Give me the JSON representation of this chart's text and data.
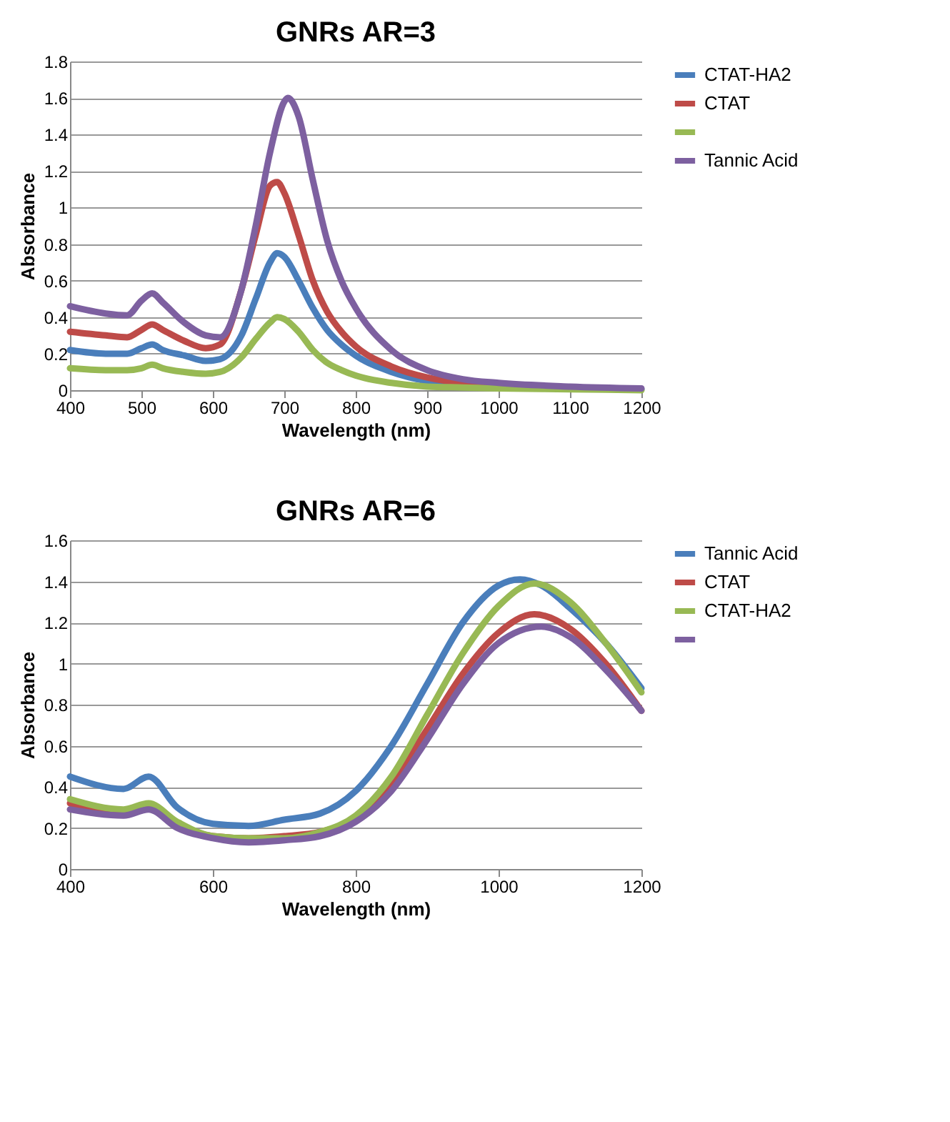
{
  "chart_data": [
    {
      "type": "line",
      "title": "GNRs AR=3",
      "xlabel": "Wavelength (nm)",
      "ylabel": "Absorbance",
      "xlim": [
        400,
        1200
      ],
      "xticks": [
        400,
        500,
        600,
        700,
        800,
        900,
        1000,
        1100,
        1200
      ],
      "ylim": [
        0,
        1.8
      ],
      "yticks": [
        0,
        0.2,
        0.4,
        0.6,
        0.8,
        1,
        1.2,
        1.4,
        1.6,
        1.8
      ],
      "grid": "y",
      "legend": "right",
      "marker": "none",
      "line_style": "solid",
      "x": [
        400,
        450,
        480,
        500,
        515,
        530,
        560,
        590,
        610,
        640,
        660,
        680,
        690,
        700,
        720,
        740,
        760,
        780,
        800,
        850,
        900,
        950,
        1000,
        1100,
        1200
      ],
      "series": [
        {
          "name": "CTAT-HA2",
          "color": "#4a7ebb",
          "values": [
            0.22,
            0.2,
            0.2,
            0.23,
            0.25,
            0.22,
            0.19,
            0.16,
            0.17,
            0.3,
            0.5,
            0.7,
            0.75,
            0.73,
            0.6,
            0.45,
            0.33,
            0.25,
            0.19,
            0.1,
            0.05,
            0.03,
            0.02,
            0.01,
            0.005
          ]
        },
        {
          "name": "CTAT",
          "color": "#be4b48",
          "values": [
            0.32,
            0.3,
            0.29,
            0.33,
            0.36,
            0.33,
            0.27,
            0.23,
            0.25,
            0.55,
            0.85,
            1.12,
            1.14,
            1.08,
            0.85,
            0.6,
            0.43,
            0.32,
            0.24,
            0.13,
            0.07,
            0.04,
            0.03,
            null,
            null
          ]
        },
        {
          "color": "#98b954",
          "values": [
            0.12,
            0.11,
            0.11,
            0.12,
            0.14,
            0.12,
            0.1,
            0.09,
            0.1,
            0.18,
            0.28,
            0.37,
            0.4,
            0.39,
            0.32,
            0.22,
            0.15,
            0.11,
            0.08,
            0.04,
            0.02,
            0.015,
            0.01,
            0.005,
            0
          ]
        },
        {
          "name": "Tannic Acid",
          "color": "#7d60a0",
          "x": [
            400,
            450,
            480,
            500,
            515,
            530,
            560,
            590,
            610,
            640,
            660,
            680,
            700,
            705,
            720,
            740,
            760,
            780,
            800,
            850,
            900,
            950,
            1000,
            1100,
            1200
          ],
          "values": [
            0.46,
            0.42,
            0.41,
            0.49,
            0.53,
            0.48,
            0.37,
            0.3,
            0.29,
            0.55,
            0.9,
            1.3,
            1.58,
            1.6,
            1.5,
            1.15,
            0.82,
            0.6,
            0.45,
            0.22,
            0.11,
            0.06,
            0.04,
            0.02,
            0.01
          ]
        }
      ]
    },
    {
      "type": "line",
      "title": "GNRs AR=6",
      "xlabel": "Wavelength (nm)",
      "ylabel": "Absorbance",
      "xlim": [
        400,
        1200
      ],
      "xticks": [
        400,
        600,
        800,
        1000,
        1200
      ],
      "ylim": [
        0,
        1.6
      ],
      "yticks": [
        0,
        0.2,
        0.4,
        0.6,
        0.8,
        1,
        1.2,
        1.4,
        1.6
      ],
      "grid": "y",
      "legend": "right",
      "marker": "none",
      "line_style": "solid",
      "x": [
        400,
        475,
        510,
        550,
        600,
        650,
        700,
        750,
        800,
        850,
        900,
        950,
        1000,
        1050,
        1100,
        1150,
        1200
      ],
      "series": [
        {
          "name": "Tannic Acid",
          "color": "#4a7ebb",
          "x": [
            400,
            475,
            510,
            550,
            600,
            650,
            700,
            750,
            800,
            850,
            900,
            950,
            1000,
            1030,
            1060,
            1100,
            1150,
            1200
          ],
          "values": [
            0.45,
            0.39,
            0.45,
            0.3,
            0.22,
            0.21,
            0.24,
            0.27,
            0.38,
            0.6,
            0.9,
            1.2,
            1.38,
            1.41,
            1.38,
            1.27,
            1.1,
            0.88
          ]
        },
        {
          "name": "CTAT",
          "color": "#be4b48",
          "values": [
            0.32,
            0.27,
            0.31,
            0.22,
            0.16,
            0.15,
            0.16,
            0.18,
            0.25,
            0.42,
            0.68,
            0.95,
            1.15,
            1.24,
            1.17,
            1.0,
            0.77
          ]
        },
        {
          "name": "CTAT-HA2",
          "color": "#98b954",
          "values": [
            0.34,
            0.29,
            0.32,
            0.23,
            0.16,
            0.15,
            0.15,
            0.18,
            0.26,
            0.45,
            0.75,
            1.05,
            1.28,
            1.39,
            1.3,
            1.1,
            0.86
          ]
        },
        {
          "color": "#7d60a0",
          "x": [
            400,
            475,
            510,
            550,
            600,
            650,
            700,
            750,
            800,
            850,
            900,
            950,
            1000,
            1060,
            1100,
            1150,
            1200
          ],
          "values": [
            0.29,
            0.26,
            0.29,
            0.2,
            0.15,
            0.13,
            0.14,
            0.16,
            0.23,
            0.38,
            0.63,
            0.9,
            1.1,
            1.18,
            1.13,
            0.97,
            0.77
          ]
        }
      ]
    }
  ]
}
